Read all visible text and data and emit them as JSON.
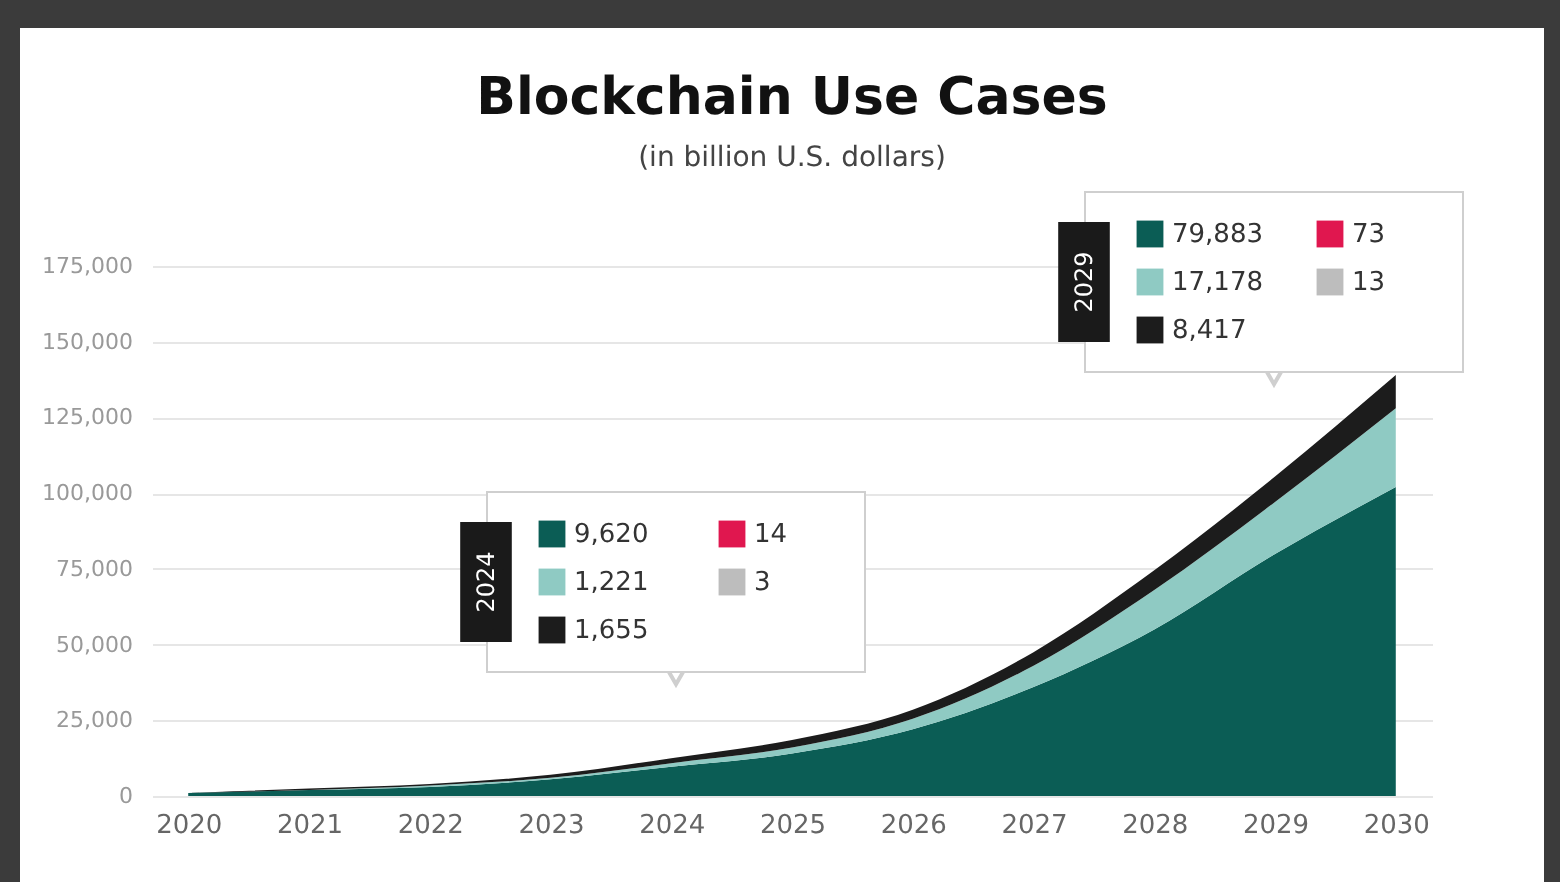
{
  "chart_data": {
    "type": "area",
    "title": "Blockchain Use Cases",
    "subtitle": "(in billion U.S. dollars)",
    "categories": [
      "2020",
      "2021",
      "2022",
      "2023",
      "2024",
      "2025",
      "2026",
      "2027",
      "2028",
      "2029",
      "2030"
    ],
    "stacked": true,
    "ylim": [
      0,
      175000
    ],
    "yticks": [
      0,
      {
        "value": 25000,
        "label": "25,000"
      },
      {
        "value": 50000,
        "label": "50,000"
      },
      {
        "value": 75000,
        "label": "75,000"
      },
      {
        "value": 100000,
        "label": "100,000"
      },
      {
        "value": 125000,
        "label": "125,000"
      },
      {
        "value": 150000,
        "label": "150,000"
      },
      {
        "value": 175000,
        "label": "175,000"
      }
    ],
    "grid": "y",
    "legend": false,
    "series": [
      {
        "color": "#0b5d55",
        "values": [
          1000,
          2000,
          3000,
          5500,
          9620,
          14000,
          22000,
          36000,
          55000,
          79883,
          102000
        ]
      },
      {
        "color": "#8fcac3",
        "values": [
          0,
          0,
          500,
          500,
          1221,
          2000,
          3500,
          7000,
          13000,
          17178,
          26000
        ]
      },
      {
        "color": "#1c1c1c",
        "values": [
          0,
          500,
          500,
          1000,
          1655,
          2500,
          3000,
          4500,
          6500,
          8417,
          11000
        ]
      }
    ],
    "annotations": [
      "2024",
      "9,620",
      "1,221",
      "1,655",
      "14",
      "3",
      "2029",
      "79,883",
      "17,178",
      "8,417",
      "73",
      "13"
    ]
  }
}
